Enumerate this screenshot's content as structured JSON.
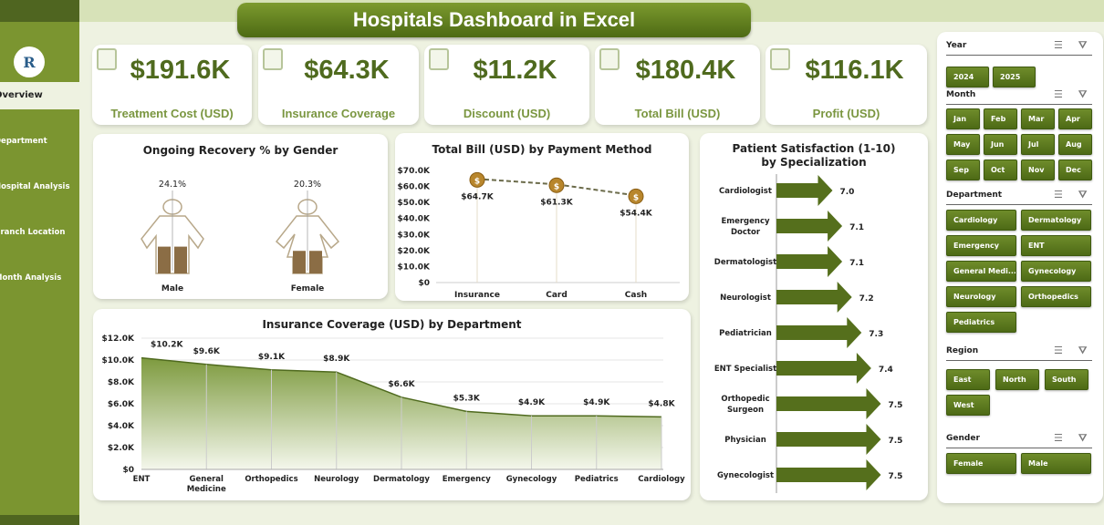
{
  "title": "Hospitals Dashboard in Excel",
  "logo_text": "R",
  "nav": [
    "Overview",
    "Department",
    "Hospital Analysis",
    "Branch Location",
    "Month Analysis"
  ],
  "kpis": [
    {
      "value": "$191.6K",
      "label": "Treatment Cost (USD)",
      "icon": "bill-icon"
    },
    {
      "value": "$64.3K",
      "label": "Insurance Coverage",
      "icon": "clipboard-icon"
    },
    {
      "value": "$11.2K",
      "label": "Discount (USD)",
      "icon": "discount-receipt-icon"
    },
    {
      "value": "$180.4K",
      "label": "Total Bill (USD)",
      "icon": "cash-icon"
    },
    {
      "value": "$116.1K",
      "label": "Profit (USD)",
      "icon": "profit-chart-icon"
    }
  ],
  "colors": {
    "accent": "#4f6a1e",
    "label": "#7a9640",
    "sidebar": "#7b9530",
    "fill": "#6b8a2a",
    "figure": "#8b6d45"
  },
  "chart_data": [
    {
      "type": "bar",
      "title": "Ongoing Recovery % by Gender",
      "categories": [
        "Male",
        "Female"
      ],
      "values": [
        24.1,
        20.3
      ],
      "labels": [
        "24.1%",
        "20.3%"
      ]
    },
    {
      "type": "line",
      "title": "Total Bill (USD) by Payment Method",
      "categories": [
        "Insurance",
        "Card",
        "Cash"
      ],
      "values": [
        64.7,
        61.3,
        54.4
      ],
      "labels": [
        "$64.7K",
        "$61.3K",
        "$54.4K"
      ],
      "ylim": [
        0,
        70
      ],
      "yticks": [
        "$0",
        "$10.0K",
        "$20.0K",
        "$30.0K",
        "$40.0K",
        "$50.0K",
        "$60.0K",
        "$70.0K"
      ]
    },
    {
      "type": "area",
      "title": "Insurance Coverage (USD) by Department",
      "categories": [
        "ENT",
        "General Medicine",
        "Orthopedics",
        "Neurology",
        "Dermatology",
        "Emergency",
        "Gynecology",
        "Pediatrics",
        "Cardiology"
      ],
      "values": [
        10.2,
        9.6,
        9.1,
        8.9,
        6.6,
        5.3,
        4.9,
        4.9,
        4.8
      ],
      "labels": [
        "$10.2K",
        "$9.6K",
        "$9.1K",
        "$8.9K",
        "$6.6K",
        "$5.3K",
        "$4.9K",
        "$4.9K",
        "$4.8K"
      ],
      "ylim": [
        0,
        12
      ],
      "yticks": [
        "$0",
        "$2.0K",
        "$4.0K",
        "$6.0K",
        "$8.0K",
        "$10.0K",
        "$12.0K"
      ]
    },
    {
      "type": "bar",
      "title": "Patient Satisfaction (1-10) by Specialization",
      "categories": [
        "Cardiologist",
        "Emergency Doctor",
        "Dermatologist",
        "Neurologist",
        "Pediatrician",
        "ENT Specialist",
        "Orthopedic Surgeon",
        "Physician",
        "Gynecologist"
      ],
      "values": [
        7.0,
        7.1,
        7.1,
        7.2,
        7.3,
        7.4,
        7.5,
        7.5,
        7.5
      ],
      "labels": [
        "7.0",
        "7.1",
        "7.1",
        "7.2",
        "7.3",
        "7.4",
        "7.5",
        "7.5",
        "7.5"
      ],
      "xlim": [
        6.42,
        7.6
      ]
    }
  ],
  "slicers": [
    {
      "title": "Year",
      "items": [
        "2024",
        "2025"
      ]
    },
    {
      "title": "Month",
      "items": [
        "Jan",
        "Feb",
        "Mar",
        "Apr",
        "May",
        "Jun",
        "Jul",
        "Aug",
        "Sep",
        "Oct",
        "Nov",
        "Dec"
      ]
    },
    {
      "title": "Department",
      "items": [
        "Cardiology",
        "Dermatology",
        "Emergency",
        "ENT",
        "General Medi...",
        "Gynecology",
        "Neurology",
        "Orthopedics",
        "Pediatrics"
      ]
    },
    {
      "title": "Region",
      "items": [
        "East",
        "North",
        "South",
        "West"
      ]
    },
    {
      "title": "Gender",
      "items": [
        "Female",
        "Male"
      ]
    }
  ]
}
